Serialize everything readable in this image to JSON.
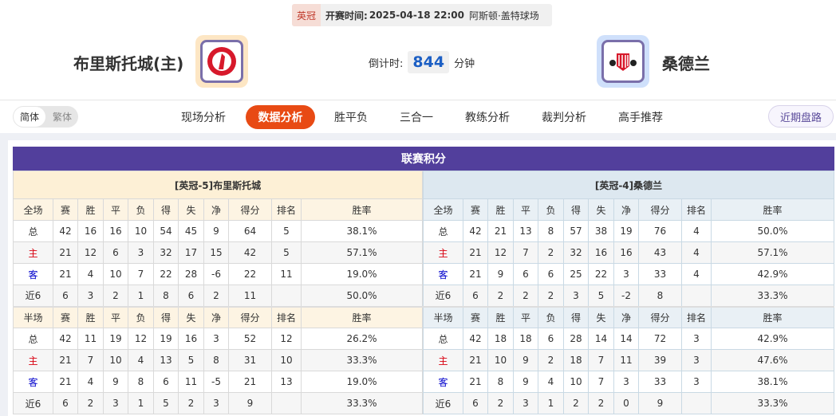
{
  "match": {
    "league": "英冠",
    "time_label": "开赛时间:",
    "time": "2025-04-18 22:00",
    "venue": "阿斯顿·盖特球场"
  },
  "home": {
    "name": "布里斯托城(主)",
    "logo": "bristol-city-crest",
    "logo_bg": "#fde6c4"
  },
  "away": {
    "name": "桑德兰",
    "logo": "sunderland-crest",
    "logo_bg": "#cfe0fb"
  },
  "countdown": {
    "label": "倒计时:",
    "value": "844",
    "unit": "分钟"
  },
  "lang": {
    "simplified": "简体",
    "traditional": "繁体"
  },
  "tabs": [
    {
      "label": "现场分析"
    },
    {
      "label": "数据分析",
      "active": true
    },
    {
      "label": "胜平负"
    },
    {
      "label": "三合一"
    },
    {
      "label": "教练分析"
    },
    {
      "label": "裁判分析"
    },
    {
      "label": "高手推荐"
    }
  ],
  "recent_button": "近期盘路",
  "section_title": "联赛积分",
  "colors": {
    "accent": "#e84a14",
    "title_bar": "#523f9c",
    "home_label": "#d8000f",
    "away_label": "#0000cc"
  },
  "columns": [
    "赛",
    "胜",
    "平",
    "负",
    "得",
    "失",
    "净",
    "得分",
    "排名",
    "胜率"
  ],
  "tables": [
    {
      "team": "[英冠-5]布里斯托城",
      "full": {
        "label": "全场",
        "rows": [
          [
            "总",
            "42",
            "16",
            "16",
            "10",
            "54",
            "45",
            "9",
            "64",
            "5",
            "38.1%"
          ],
          [
            "主",
            "21",
            "12",
            "6",
            "3",
            "32",
            "17",
            "15",
            "42",
            "5",
            "57.1%"
          ],
          [
            "客",
            "21",
            "4",
            "10",
            "7",
            "22",
            "28",
            "-6",
            "22",
            "11",
            "19.0%"
          ],
          [
            "近6",
            "6",
            "3",
            "2",
            "1",
            "8",
            "6",
            "2",
            "11",
            "",
            "50.0%"
          ]
        ]
      },
      "half": {
        "label": "半场",
        "rows": [
          [
            "总",
            "42",
            "11",
            "19",
            "12",
            "19",
            "16",
            "3",
            "52",
            "12",
            "26.2%"
          ],
          [
            "主",
            "21",
            "7",
            "10",
            "4",
            "13",
            "5",
            "8",
            "31",
            "10",
            "33.3%"
          ],
          [
            "客",
            "21",
            "4",
            "9",
            "8",
            "6",
            "11",
            "-5",
            "21",
            "13",
            "19.0%"
          ],
          [
            "近6",
            "6",
            "2",
            "3",
            "1",
            "5",
            "2",
            "3",
            "9",
            "",
            "33.3%"
          ]
        ]
      }
    },
    {
      "team": "[英冠-4]桑德兰",
      "full": {
        "label": "全场",
        "rows": [
          [
            "总",
            "42",
            "21",
            "13",
            "8",
            "57",
            "38",
            "19",
            "76",
            "4",
            "50.0%"
          ],
          [
            "主",
            "21",
            "12",
            "7",
            "2",
            "32",
            "16",
            "16",
            "43",
            "4",
            "57.1%"
          ],
          [
            "客",
            "21",
            "9",
            "6",
            "6",
            "25",
            "22",
            "3",
            "33",
            "4",
            "42.9%"
          ],
          [
            "近6",
            "6",
            "2",
            "2",
            "2",
            "3",
            "5",
            "-2",
            "8",
            "",
            "33.3%"
          ]
        ]
      },
      "half": {
        "label": "半场",
        "rows": [
          [
            "总",
            "42",
            "18",
            "18",
            "6",
            "28",
            "14",
            "14",
            "72",
            "3",
            "42.9%"
          ],
          [
            "主",
            "21",
            "10",
            "9",
            "2",
            "18",
            "7",
            "11",
            "39",
            "3",
            "47.6%"
          ],
          [
            "客",
            "21",
            "8",
            "9",
            "4",
            "10",
            "7",
            "3",
            "33",
            "3",
            "38.1%"
          ],
          [
            "近6",
            "6",
            "2",
            "3",
            "1",
            "2",
            "2",
            "0",
            "9",
            "",
            "33.3%"
          ]
        ]
      }
    }
  ]
}
